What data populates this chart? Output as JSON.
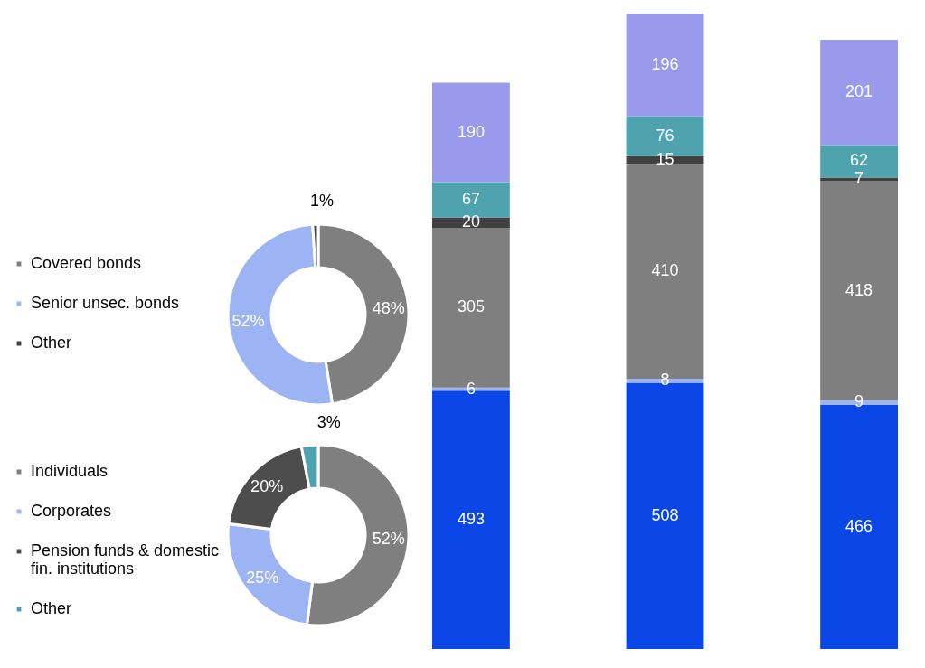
{
  "chart_data": [
    {
      "type": "donut",
      "categories": [
        "Covered bonds",
        "Senior unsec. bonds",
        "Other"
      ],
      "values": [
        48,
        52,
        1
      ],
      "value_labels": [
        "48%",
        "52%",
        "1%"
      ],
      "colors": [
        "#7f7f7f",
        "#9db4f4",
        "#404040"
      ],
      "legend": "left"
    },
    {
      "type": "donut",
      "categories": [
        "Individuals",
        "Corporates",
        "Pension funds & domestic fin. institutions",
        "Other"
      ],
      "values": [
        52,
        25,
        20,
        3
      ],
      "value_labels": [
        "52%",
        "25%",
        "20%",
        "3%"
      ],
      "colors": [
        "#7f7f7f",
        "#9db4f4",
        "#4d4d4d",
        "#4fa3ae"
      ],
      "legend": "left"
    },
    {
      "type": "bar",
      "stacked": true,
      "data_labels": true,
      "categories": [
        null,
        null,
        null
      ],
      "series": [
        {
          "color": "#0a47e6",
          "values": [
            493,
            508,
            466
          ]
        },
        {
          "color": "#9db4f4",
          "values": [
            6,
            8,
            9
          ]
        },
        {
          "color": "#7f7f7f",
          "values": [
            305,
            410,
            418
          ]
        },
        {
          "color": "#404040",
          "values": [
            20,
            15,
            7
          ]
        },
        {
          "color": "#4fa3ae",
          "values": [
            67,
            76,
            62
          ]
        },
        {
          "color": "#9a9aec",
          "values": [
            190,
            196,
            201
          ]
        }
      ]
    }
  ]
}
